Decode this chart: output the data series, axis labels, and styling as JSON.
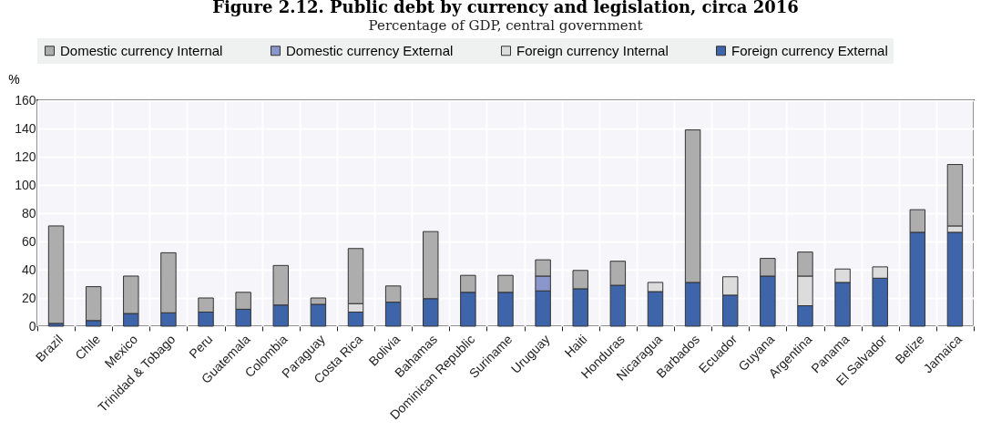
{
  "chart_data": {
    "type": "bar",
    "stacked": true,
    "title": "Figure 2.12. Public debt by currency and legislation, circa 2016",
    "subtitle": "Percentage of GDP, central government",
    "ylabel": "%",
    "categories": [
      "Brazil",
      "Chile",
      "Mexico",
      "Trinidad & Tobago",
      "Peru",
      "Guatemala",
      "Colombia",
      "Paraguay",
      "Costa Rica",
      "Bolivia",
      "Bahamas",
      "Dominican Republic",
      "Suriname",
      "Uruguay",
      "Haiti",
      "Honduras",
      "Nicaragua",
      "Barbados",
      "Ecuador",
      "Guyana",
      "Argentina",
      "Panama",
      "El Salvador",
      "Belize",
      "Jamaica"
    ],
    "series": [
      {
        "name": "Foreign currency External",
        "color": "#3e64aa",
        "values": [
          2,
          4,
          9,
          9.5,
          10,
          12,
          15,
          15.5,
          10,
          17,
          19.5,
          24,
          24,
          25,
          26.5,
          29,
          24.5,
          31,
          22,
          35.5,
          14.5,
          31,
          34,
          66.5,
          66.5
        ]
      },
      {
        "name": "Foreign currency Internal",
        "color": "#dcdcdc",
        "values": [
          null,
          null,
          null,
          null,
          null,
          null,
          null,
          null,
          6,
          null,
          null,
          null,
          null,
          null,
          null,
          null,
          6.5,
          null,
          13,
          null,
          21,
          9.5,
          8,
          null,
          4.5
        ]
      },
      {
        "name": "Domestic currency External",
        "color": "#8b97cc",
        "values": [
          null,
          null,
          null,
          null,
          null,
          null,
          null,
          null,
          null,
          null,
          null,
          null,
          null,
          10.5,
          null,
          null,
          null,
          null,
          null,
          null,
          null,
          null,
          null,
          null,
          null
        ]
      },
      {
        "name": "Domestic currency Internal",
        "color": "#adadad",
        "values": [
          69,
          24,
          26.5,
          42.5,
          10,
          12,
          28,
          4.5,
          39,
          11.5,
          47.5,
          12,
          12,
          11.5,
          13,
          17,
          null,
          108,
          null,
          12.5,
          17,
          null,
          null,
          16,
          43.5
        ]
      }
    ],
    "ylim": [
      0,
      160
    ],
    "yticks": [
      0,
      20,
      40,
      60,
      80,
      100,
      120,
      140,
      160
    ],
    "grid": true,
    "legend": "top"
  }
}
